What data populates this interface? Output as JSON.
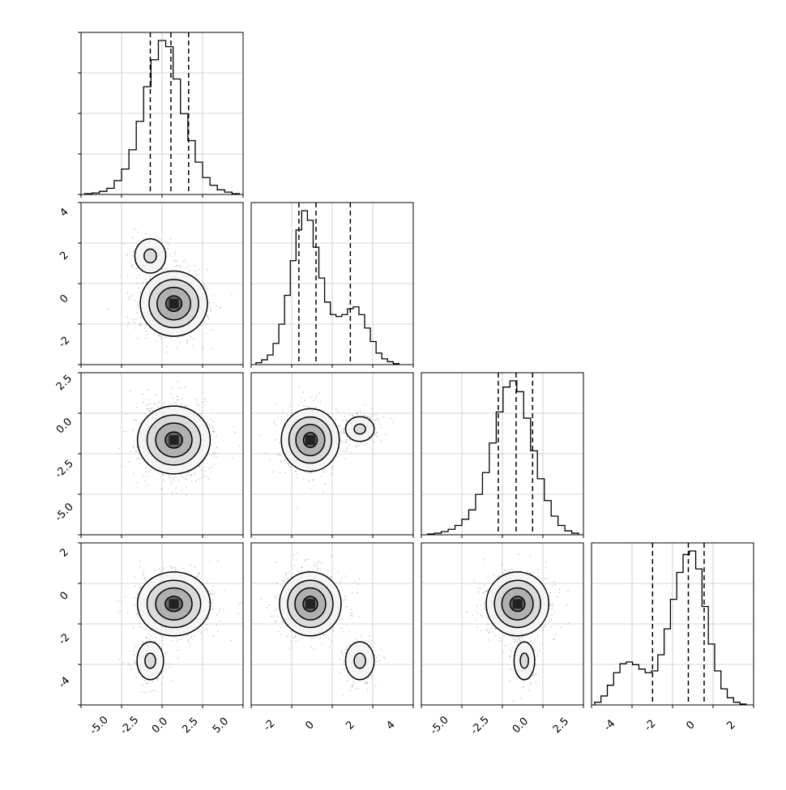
{
  "chart_data": {
    "type": "corner",
    "grid": true,
    "parameters": 4,
    "ticks": {
      "x0": [
        "-5.0",
        "-2.5",
        "0.0",
        "2.5",
        "5.0"
      ],
      "x1": [
        "-2",
        "0",
        "2",
        "4"
      ],
      "x2": [
        "-5.0",
        "-2.5",
        "0.0",
        "2.5"
      ],
      "x3": [
        "-4",
        "-2",
        "0",
        "2"
      ],
      "y1": [
        "4",
        "2",
        "0",
        "-2"
      ],
      "y2": [
        "2.5",
        "0.0",
        "-2.5",
        "-5.0"
      ],
      "y3": [
        "2",
        "0",
        "-2",
        "-4"
      ]
    },
    "ranges": [
      [
        -6.0,
        5.0
      ],
      [
        -3.9,
        4.6
      ],
      [
        -7.2,
        4.6
      ],
      [
        -4.9,
        2.8
      ]
    ],
    "quantiles": [
      [
        -1.3,
        0.1,
        1.3
      ],
      [
        -1.4,
        -0.5,
        1.3
      ],
      [
        -1.6,
        -0.3,
        0.9
      ],
      [
        -2.0,
        -0.3,
        0.45
      ]
    ],
    "histograms": [
      {
        "bins": [
          -5.5,
          -5.0,
          -4.5,
          -4.0,
          -3.5,
          -3.0,
          -2.5,
          -2.0,
          -1.5,
          -1.0,
          -0.5,
          0.0,
          0.5,
          1.0,
          1.5,
          2.0,
          2.5,
          3.0,
          3.5,
          4.0,
          4.5
        ],
        "counts": [
          1,
          2,
          4,
          8,
          18,
          33,
          58,
          95,
          140,
          175,
          200,
          192,
          150,
          105,
          70,
          42,
          22,
          12,
          6,
          3,
          1
        ]
      },
      {
        "bins": [
          -3.5,
          -3.2,
          -2.9,
          -2.6,
          -2.3,
          -2.0,
          -1.7,
          -1.4,
          -1.1,
          -0.8,
          -0.5,
          -0.2,
          0.1,
          0.4,
          0.7,
          1.0,
          1.3,
          1.6,
          1.9,
          2.2,
          2.5,
          2.8,
          3.1,
          3.4,
          3.7
        ],
        "counts": [
          2,
          5,
          10,
          22,
          42,
          72,
          108,
          140,
          160,
          150,
          122,
          90,
          65,
          52,
          50,
          52,
          58,
          60,
          52,
          38,
          24,
          12,
          6,
          3,
          1
        ]
      },
      {
        "bins": [
          -6.5,
          -6.0,
          -5.5,
          -5.0,
          -4.5,
          -4.0,
          -3.5,
          -3.0,
          -2.5,
          -2.0,
          -1.5,
          -1.0,
          -0.5,
          0.0,
          0.5,
          1.0,
          1.5,
          2.0,
          2.5,
          3.0,
          3.5,
          4.0
        ],
        "counts": [
          1,
          2,
          4,
          7,
          12,
          20,
          32,
          52,
          80,
          118,
          158,
          190,
          198,
          184,
          150,
          108,
          72,
          44,
          24,
          12,
          5,
          2
        ]
      },
      {
        "bins": [
          -4.6,
          -4.3,
          -4.0,
          -3.7,
          -3.4,
          -3.1,
          -2.8,
          -2.5,
          -2.2,
          -1.9,
          -1.6,
          -1.3,
          -1.0,
          -0.7,
          -0.4,
          -0.1,
          0.2,
          0.5,
          0.8,
          1.1,
          1.4,
          1.7,
          2.0,
          2.3
        ],
        "counts": [
          3,
          10,
          22,
          36,
          46,
          48,
          45,
          40,
          36,
          38,
          56,
          85,
          118,
          148,
          168,
          172,
          152,
          110,
          68,
          38,
          18,
          8,
          3,
          1
        ]
      }
    ],
    "modes": {
      "1_0": [
        {
          "x": 0.3,
          "y": -0.7,
          "sx": 1.2,
          "sy": 0.9,
          "w": 0.85
        },
        {
          "x": -1.3,
          "y": 1.8,
          "sx": 0.7,
          "sy": 0.6,
          "w": 0.15
        }
      ],
      "2_0": [
        {
          "x": 0.3,
          "y": -0.3,
          "sx": 1.3,
          "sy": 1.3,
          "w": 1.0
        }
      ],
      "2_1": [
        {
          "x": -0.8,
          "y": -0.3,
          "sx": 0.8,
          "sy": 1.2,
          "w": 0.8
        },
        {
          "x": 1.8,
          "y": 0.5,
          "sx": 0.5,
          "sy": 0.6,
          "w": 0.2
        }
      ],
      "3_0": [
        {
          "x": 0.3,
          "y": -0.1,
          "sx": 1.3,
          "sy": 0.8,
          "w": 0.82
        },
        {
          "x": -1.3,
          "y": -2.8,
          "sx": 0.6,
          "sy": 0.6,
          "w": 0.18
        }
      ],
      "3_1": [
        {
          "x": -0.8,
          "y": -0.1,
          "sx": 0.85,
          "sy": 0.8,
          "w": 0.8
        },
        {
          "x": 1.8,
          "y": -2.8,
          "sx": 0.5,
          "sy": 0.6,
          "w": 0.2
        }
      ],
      "3_2": [
        {
          "x": -0.2,
          "y": -0.1,
          "sx": 1.2,
          "sy": 0.8,
          "w": 0.82
        },
        {
          "x": 0.3,
          "y": -2.8,
          "sx": 0.5,
          "sy": 0.6,
          "w": 0.18
        }
      ]
    },
    "contour_levels": [
      0.2,
      0.45,
      0.75,
      0.95
    ]
  }
}
